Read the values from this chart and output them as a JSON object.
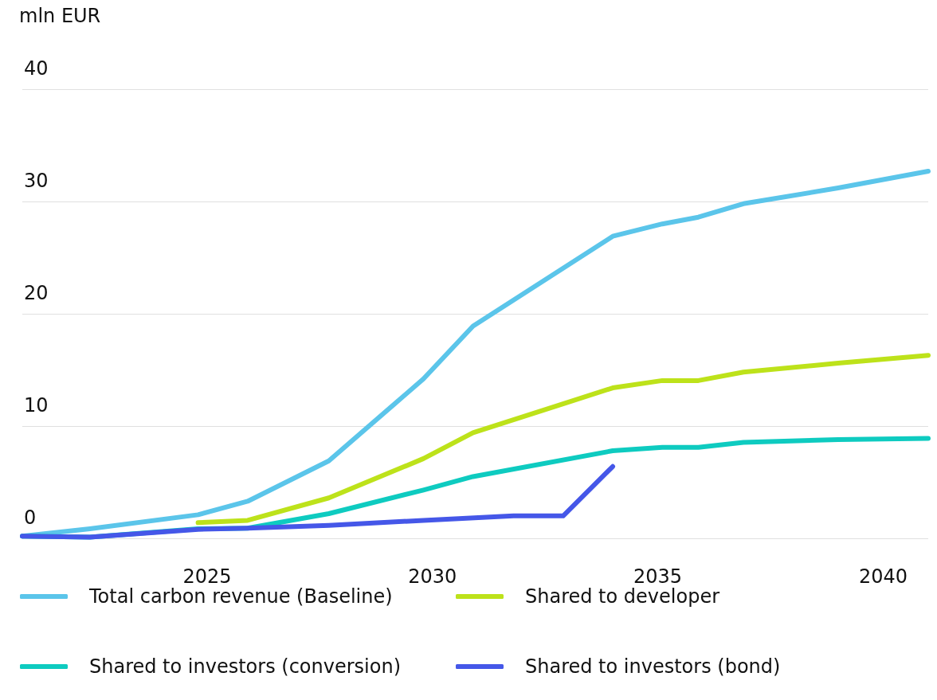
{
  "chart_data": {
    "type": "line",
    "ylabel": "mln EUR",
    "xlim": [
      2020.9,
      2041.0
    ],
    "ylim": [
      0,
      40
    ],
    "xticks": [
      2025,
      2030,
      2035,
      2040
    ],
    "yticks": [
      0,
      10,
      20,
      30,
      40
    ],
    "grid": "y",
    "legend": "bottom",
    "marker": "none",
    "line_style": "solid",
    "series": [
      {
        "name": "Total carbon revenue (Baseline)",
        "color": "#5bc5ea",
        "x": [
          2020.9,
          2022.4,
          2024.8,
          2025.9,
          2027.7,
          2029.8,
          2030.9,
          2034.0,
          2035.1,
          2035.9,
          2036.9,
          2039.0,
          2041.0
        ],
        "values": [
          0.2,
          0.85,
          2.1,
          3.3,
          6.9,
          14.2,
          18.9,
          26.9,
          28.0,
          28.6,
          29.8,
          31.2,
          32.7
        ]
      },
      {
        "name": "Shared to developer",
        "color": "#bde21a",
        "x": [
          2024.8,
          2025.9,
          2027.7,
          2029.8,
          2030.9,
          2034.0,
          2035.1,
          2035.9,
          2036.9,
          2039.0,
          2041.0
        ],
        "values": [
          1.4,
          1.6,
          3.6,
          7.1,
          9.4,
          13.4,
          14.05,
          14.05,
          14.8,
          15.6,
          16.3
        ]
      },
      {
        "name": "Shared to investors (conversion)",
        "color": "#0ecbc0",
        "x": [
          2020.9,
          2022.4,
          2024.8,
          2025.9,
          2027.7,
          2029.8,
          2030.9,
          2034.0,
          2035.1,
          2035.9,
          2036.9,
          2039.0,
          2041.0
        ],
        "values": [
          0.2,
          0.1,
          0.85,
          0.9,
          2.2,
          4.3,
          5.5,
          7.8,
          8.1,
          8.1,
          8.55,
          8.8,
          8.9
        ]
      },
      {
        "name": "Shared to investors (bond)",
        "color": "#4557e8",
        "x": [
          2020.9,
          2022.4,
          2024.8,
          2025.9,
          2027.7,
          2029.8,
          2031.8,
          2032.9,
          2034.0
        ],
        "values": [
          0.2,
          0.1,
          0.8,
          0.9,
          1.15,
          1.6,
          2.0,
          2.0,
          6.4
        ]
      }
    ]
  }
}
